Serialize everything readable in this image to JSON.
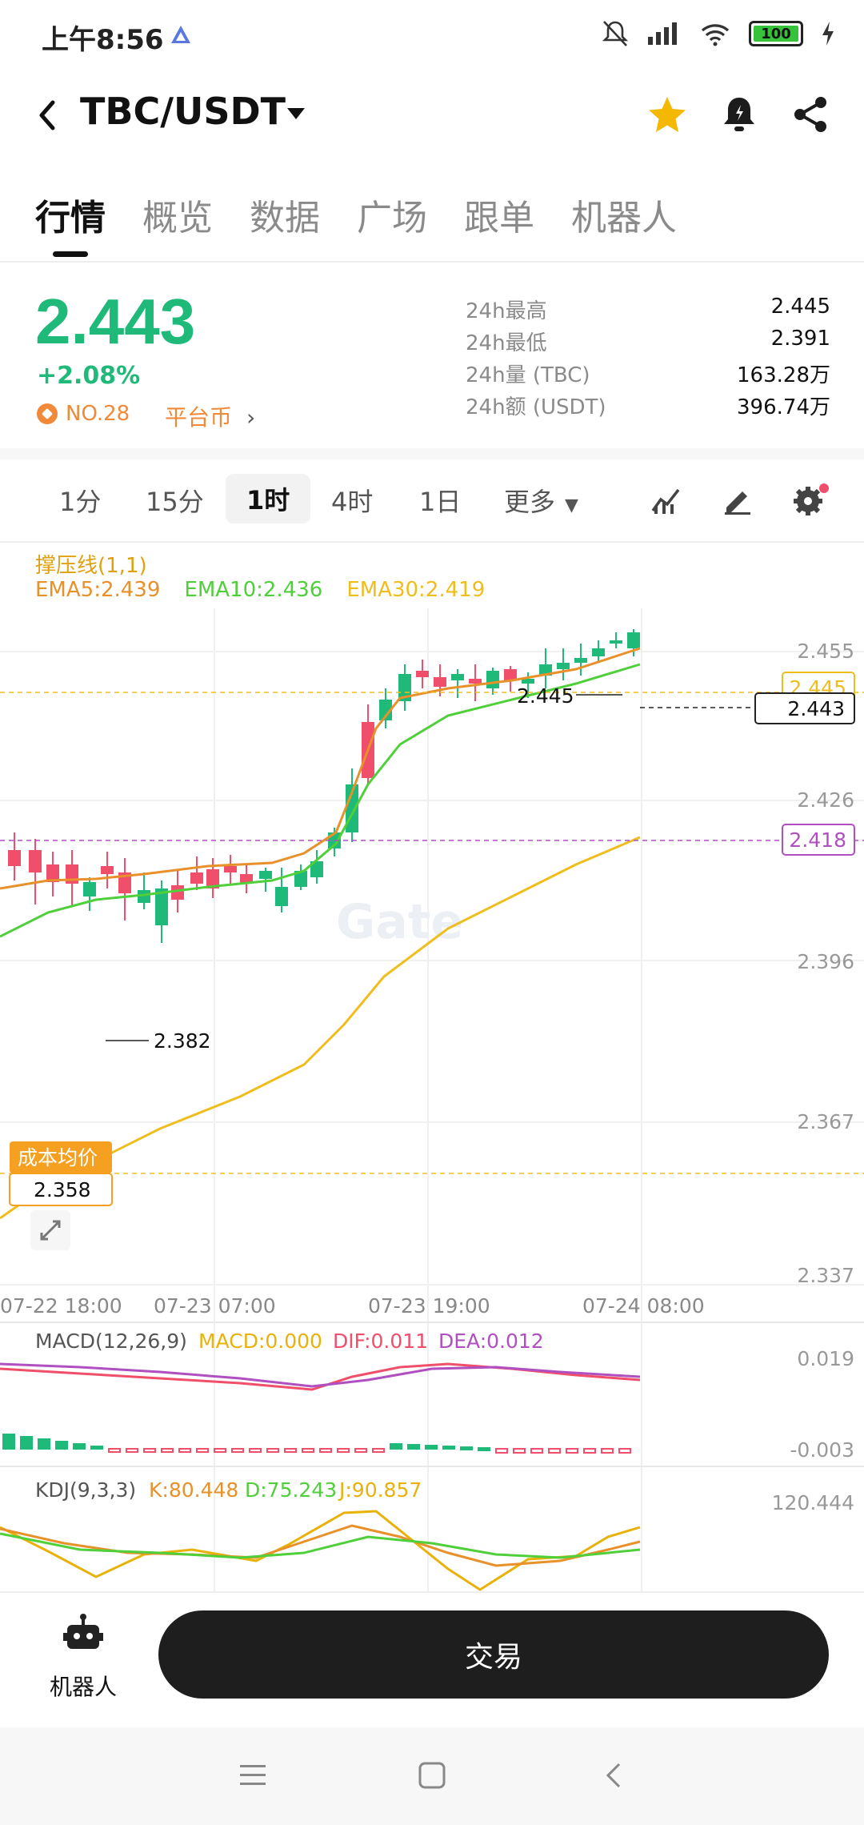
{
  "status": {
    "time": "上午8:56",
    "battery": "100"
  },
  "header": {
    "pair": "TBC/USDT"
  },
  "tabs": [
    "行情",
    "概览",
    "数据",
    "广场",
    "跟单",
    "机器人"
  ],
  "ticker": {
    "price": "2.443",
    "change": "+2.08%",
    "rank": "NO.28",
    "category": "平台币",
    "stats": [
      {
        "label": "24h最高",
        "value": "2.445"
      },
      {
        "label": "24h最低",
        "value": "2.391"
      },
      {
        "label": "24h量 (TBC)",
        "value": "163.28万"
      },
      {
        "label": "24h额 (USDT)",
        "value": "396.74万"
      }
    ]
  },
  "intervals": [
    "1分",
    "15分",
    "1时",
    "4时",
    "1日",
    "更多"
  ],
  "indicators": {
    "support": "撑压线(1,1)",
    "ema5": "EMA5:2.439",
    "ema10": "EMA10:2.436",
    "ema30": "EMA30:2.419"
  },
  "chart": {
    "y_ticks": [
      "2.455",
      "2.426",
      "2.396",
      "2.367",
      "2.337"
    ],
    "x_ticks": [
      "07-22 18:00",
      "07-23 07:00",
      "07-23 19:00",
      "07-24 08:00"
    ],
    "high_marker": "2.445",
    "low_marker": "2.382",
    "last_price_tag": "2.443",
    "high_line_tag": "2.445",
    "purple_line_tag": "2.418",
    "cost_label": "成本均价",
    "cost_value": "2.358",
    "watermark": "Gate"
  },
  "macd": {
    "title": "MACD(12,26,9)",
    "macd": "MACD:0.000",
    "dif": "DIF:0.011",
    "dea": "DEA:0.012",
    "top": "0.019",
    "bottom": "-0.003"
  },
  "kdj": {
    "title": "KDJ(9,3,3)",
    "k": "K:80.448",
    "d": "D:75.243",
    "j": "J:90.857",
    "top": "120.444"
  },
  "bottom": {
    "robot_label": "机器人",
    "trade_label": "交易"
  },
  "colors": {
    "up": "#1fb97a",
    "down": "#ef4f6a",
    "ema5": "#e8912b",
    "ema10": "#4fcf3a",
    "ema30": "#f0bd1e",
    "accent": "#f08a3a"
  }
}
